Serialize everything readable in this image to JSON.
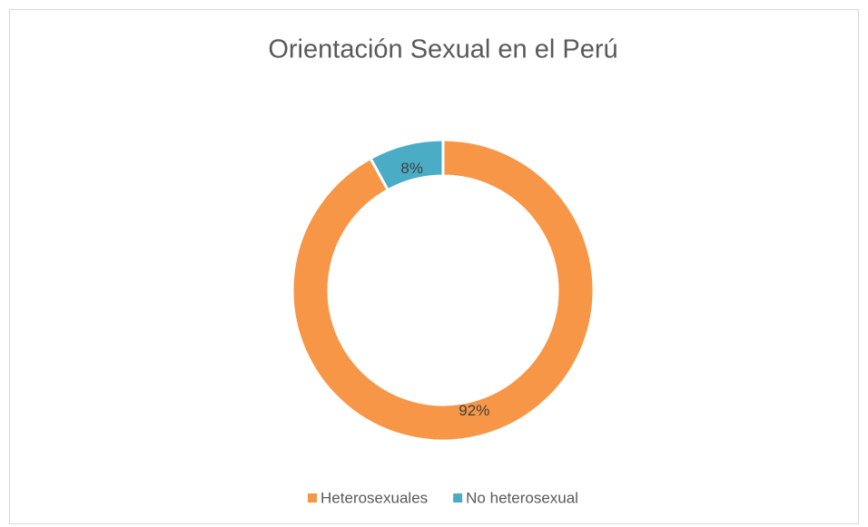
{
  "chart_data": {
    "type": "donut",
    "title": "Orientación Sexual en el Perú",
    "categories": [
      "Heterosexuales",
      "No heterosexual"
    ],
    "values": [
      92,
      8
    ],
    "value_labels": [
      "92%",
      "8%"
    ],
    "colors": [
      "#f79646",
      "#4bacc6"
    ],
    "legend": "bottom"
  }
}
